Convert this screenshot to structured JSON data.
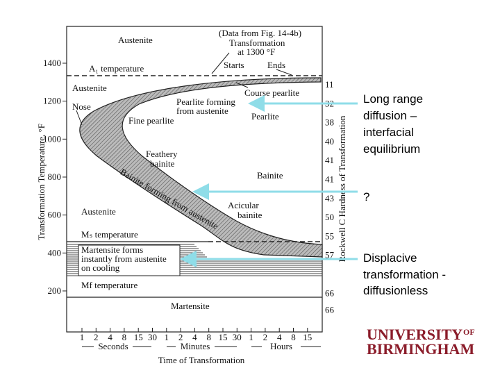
{
  "diagram": {
    "title_box": [
      "(Data from Fig. 14-4b)",
      "Transformation",
      "at 1300 °F"
    ],
    "markers": {
      "starts": "Starts",
      "ends": "Ends"
    },
    "y_axis": {
      "label": "Transformation Temperature, °F",
      "ticks": [
        1400,
        1200,
        1000,
        800,
        600,
        400,
        200
      ]
    },
    "right_axis": {
      "label": "Rockwell C Hardness of Transformation",
      "ticks": [
        "11",
        "32",
        "38",
        "40",
        "41",
        "41",
        "43",
        "50",
        "55",
        "57",
        "66",
        "66"
      ]
    },
    "x_axis": {
      "label": "Time of Transformation",
      "ticks": [
        "1",
        "2",
        "4",
        "8",
        "15",
        "30",
        "1",
        "2",
        "4",
        "8",
        "15",
        "30",
        "1",
        "2",
        "4",
        "8",
        "15"
      ],
      "units": [
        "Seconds",
        "Minutes",
        "Hours"
      ]
    },
    "regions": {
      "austenite_top": "Austenite",
      "a1": "A₁ temperature",
      "austenite_left": "Austenite",
      "coarse_pearlite": "Course pearlite",
      "nose": "Nose",
      "pearlite_forming": [
        "Pearlite forming",
        "from austenite"
      ],
      "pearlite": "Pearlite",
      "fine_pearlite": "Fine pearlite",
      "feathery_bainite": [
        "Feathery",
        "bainite"
      ],
      "bainite": "Bainite",
      "bainite_forming": "Bainite forming from austenite",
      "austenite_low": "Austenite",
      "acicular_bainite": [
        "Acicular",
        "bainite"
      ],
      "ms": "Mₛ temperature",
      "martensite_forms": [
        "Martensite forms",
        "instantly from austenite",
        "on cooling"
      ],
      "mf": "Mf temperature",
      "martensite": "Martensite"
    }
  },
  "notes": {
    "diffusion": [
      "Long range",
      "diffusion –",
      "interfacial",
      "equilibrium"
    ],
    "question": "?",
    "displacive": [
      "Displacive",
      "transformation -",
      "diffusionless"
    ]
  },
  "logo": {
    "university": "UNIVERSITY",
    "of": "OF",
    "city": "BIRMINGHAM"
  }
}
